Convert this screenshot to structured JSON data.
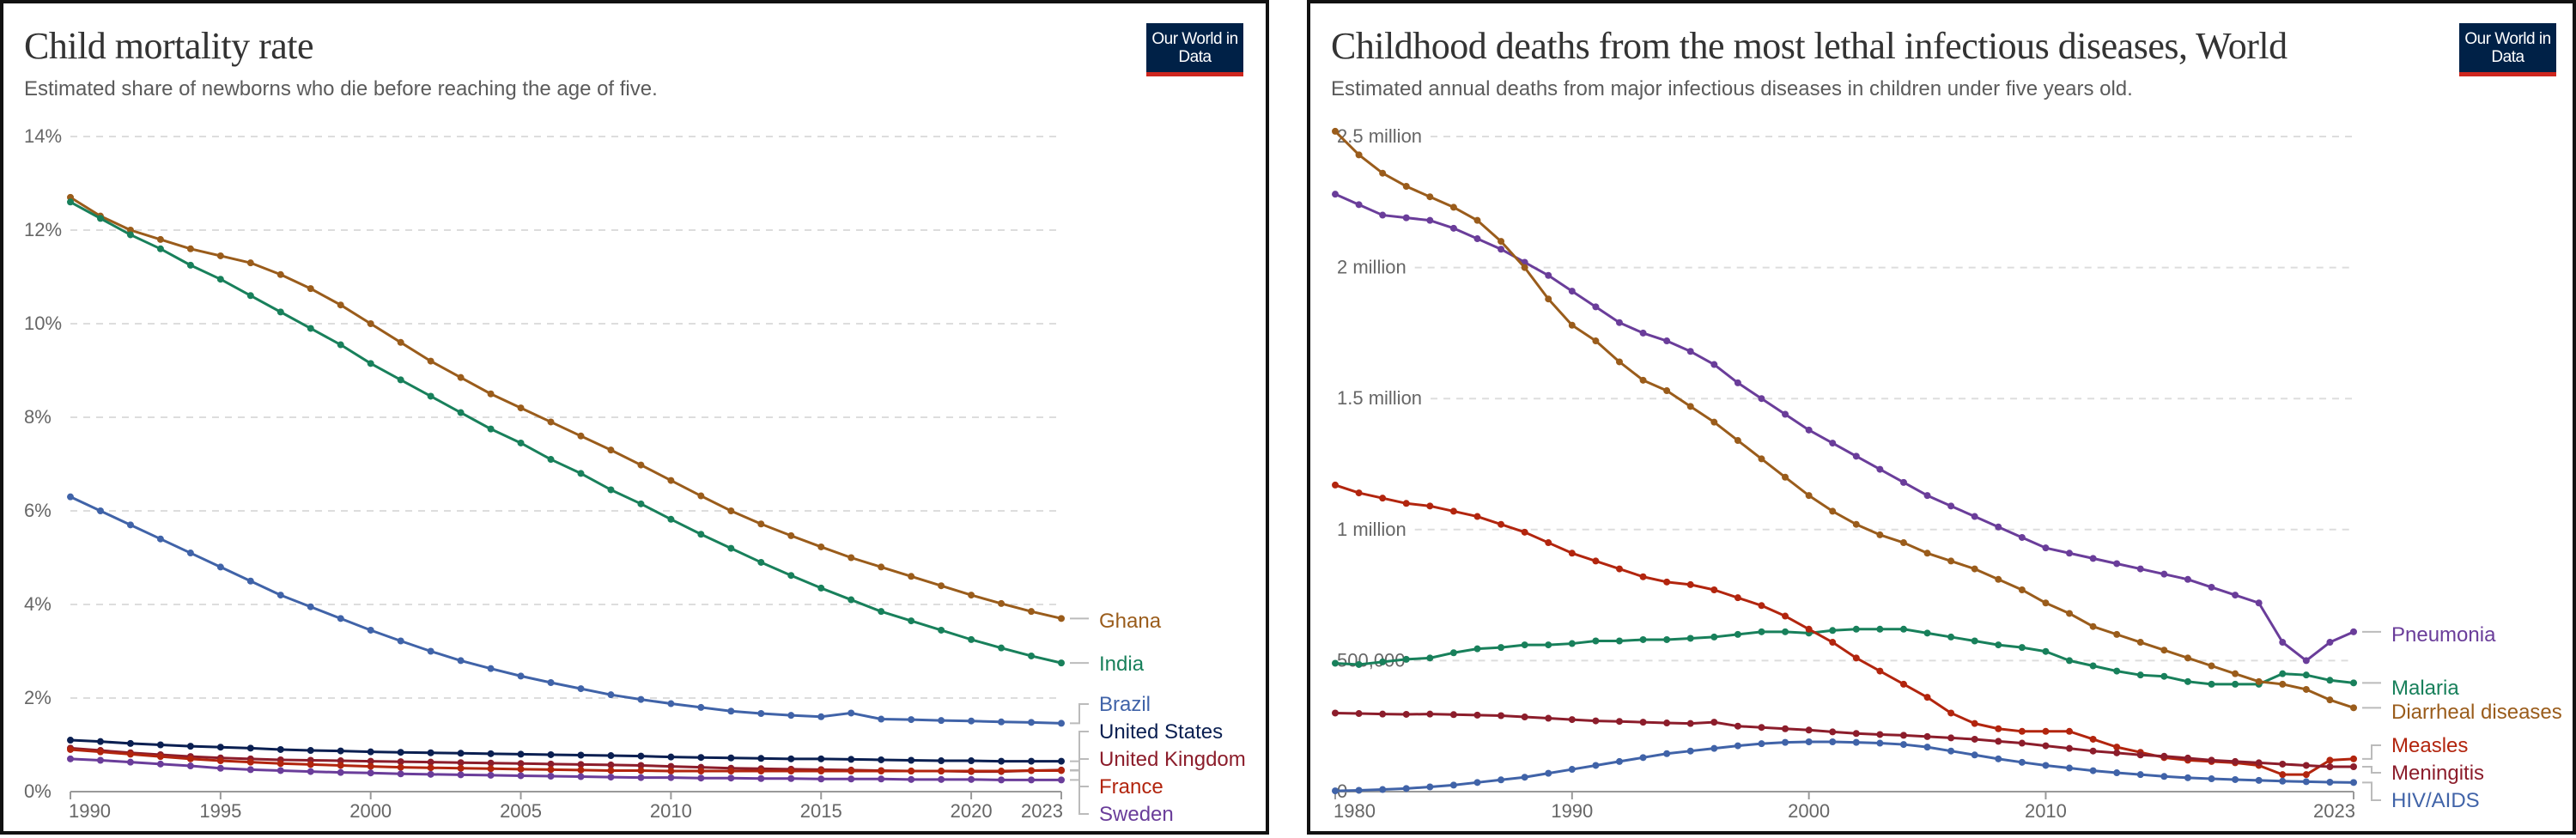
{
  "chart_data": [
    {
      "type": "line",
      "title": "Child mortality rate",
      "subtitle": "Estimated share of newborns who die before reaching the age of five.",
      "logo": "Our World in Data",
      "x_start": 1990,
      "xlim": [
        1990,
        2023
      ],
      "ylim": [
        0,
        14
      ],
      "y_ticks": [
        0,
        2,
        4,
        6,
        8,
        10,
        12,
        14
      ],
      "y_tick_labels": [
        "0%",
        "2%",
        "4%",
        "6%",
        "8%",
        "10%",
        "12%",
        "14%"
      ],
      "x_ticks": [
        1990,
        1995,
        2000,
        2005,
        2010,
        2015,
        2020,
        2023
      ],
      "x_tick_labels": [
        "1990",
        "1995",
        "2000",
        "2005",
        "2010",
        "2015",
        "2020",
        "2023"
      ],
      "grid": "horizontal dashed",
      "legend": "right, inline labels",
      "series": [
        {
          "name": "Ghana",
          "color": "#9a5c1b",
          "values": [
            12.7,
            12.3,
            12.0,
            11.8,
            11.6,
            11.45,
            11.3,
            11.05,
            10.75,
            10.4,
            10.0,
            9.6,
            9.2,
            8.85,
            8.5,
            8.2,
            7.9,
            7.6,
            7.3,
            6.98,
            6.65,
            6.32,
            6.0,
            5.72,
            5.47,
            5.23,
            5.0,
            4.8,
            4.6,
            4.4,
            4.2,
            4.02,
            3.85,
            3.7
          ]
        },
        {
          "name": "India",
          "color": "#18805b",
          "values": [
            12.6,
            12.25,
            11.9,
            11.6,
            11.25,
            10.95,
            10.6,
            10.25,
            9.9,
            9.55,
            9.15,
            8.8,
            8.45,
            8.1,
            7.75,
            7.45,
            7.1,
            6.8,
            6.45,
            6.15,
            5.82,
            5.5,
            5.2,
            4.9,
            4.62,
            4.35,
            4.1,
            3.85,
            3.65,
            3.45,
            3.25,
            3.07,
            2.9,
            2.75
          ]
        },
        {
          "name": "Brazil",
          "color": "#4063a8",
          "values": [
            6.3,
            6.0,
            5.7,
            5.4,
            5.1,
            4.8,
            4.5,
            4.2,
            3.95,
            3.7,
            3.45,
            3.22,
            3.0,
            2.8,
            2.63,
            2.47,
            2.33,
            2.2,
            2.07,
            1.97,
            1.88,
            1.8,
            1.72,
            1.67,
            1.63,
            1.6,
            1.68,
            1.55,
            1.54,
            1.52,
            1.51,
            1.49,
            1.48,
            1.46
          ]
        },
        {
          "name": "United States",
          "color": "#0a1f51",
          "values": [
            1.1,
            1.07,
            1.03,
            1.0,
            0.97,
            0.95,
            0.93,
            0.9,
            0.88,
            0.87,
            0.85,
            0.84,
            0.83,
            0.82,
            0.81,
            0.8,
            0.79,
            0.78,
            0.77,
            0.76,
            0.74,
            0.73,
            0.72,
            0.71,
            0.7,
            0.7,
            0.69,
            0.68,
            0.67,
            0.66,
            0.66,
            0.65,
            0.65,
            0.65
          ]
        },
        {
          "name": "United Kingdom",
          "color": "#8c1d2b",
          "values": [
            0.93,
            0.88,
            0.83,
            0.79,
            0.75,
            0.72,
            0.7,
            0.68,
            0.67,
            0.66,
            0.65,
            0.64,
            0.63,
            0.62,
            0.61,
            0.6,
            0.59,
            0.58,
            0.57,
            0.56,
            0.54,
            0.52,
            0.5,
            0.49,
            0.48,
            0.47,
            0.46,
            0.45,
            0.44,
            0.44,
            0.43,
            0.43,
            0.45,
            0.46
          ]
        },
        {
          "name": "France",
          "color": "#b2250e",
          "values": [
            0.9,
            0.85,
            0.8,
            0.75,
            0.7,
            0.66,
            0.63,
            0.6,
            0.58,
            0.56,
            0.54,
            0.52,
            0.51,
            0.5,
            0.49,
            0.48,
            0.47,
            0.46,
            0.45,
            0.45,
            0.44,
            0.44,
            0.44,
            0.44,
            0.44,
            0.44,
            0.44,
            0.44,
            0.44,
            0.44,
            0.44,
            0.44,
            0.45,
            0.45
          ]
        },
        {
          "name": "Sweden",
          "color": "#6a3d9a",
          "values": [
            0.7,
            0.67,
            0.63,
            0.59,
            0.55,
            0.5,
            0.47,
            0.45,
            0.43,
            0.41,
            0.4,
            0.38,
            0.37,
            0.36,
            0.35,
            0.34,
            0.33,
            0.32,
            0.31,
            0.3,
            0.3,
            0.29,
            0.29,
            0.28,
            0.28,
            0.27,
            0.27,
            0.27,
            0.26,
            0.26,
            0.26,
            0.25,
            0.25,
            0.25
          ]
        }
      ]
    },
    {
      "type": "line",
      "title": "Childhood deaths from the most lethal infectious diseases, World",
      "subtitle": "Estimated annual deaths from major infectious diseases in children under five years old.",
      "logo": "Our World in Data",
      "x_start": 1980,
      "xlim": [
        1980,
        2023
      ],
      "ylim": [
        0,
        2500000
      ],
      "y_ticks": [
        0,
        500000,
        1000000,
        1500000,
        2000000,
        2500000
      ],
      "y_tick_labels": [
        "0",
        "500,000",
        "1 million",
        "1.5 million",
        "2 million",
        "2.5 million"
      ],
      "x_ticks": [
        1980,
        1990,
        2000,
        2010,
        2023
      ],
      "x_tick_labels": [
        "1980",
        "1990",
        "2000",
        "2010",
        "2023"
      ],
      "grid": "horizontal dashed",
      "legend": "right, inline labels",
      "series": [
        {
          "name": "Pneumonia",
          "color": "#6a3d9a",
          "values": [
            2280000,
            2240000,
            2200000,
            2190000,
            2180000,
            2150000,
            2110000,
            2070000,
            2020000,
            1970000,
            1910000,
            1850000,
            1790000,
            1750000,
            1720000,
            1680000,
            1630000,
            1560000,
            1500000,
            1440000,
            1380000,
            1330000,
            1280000,
            1230000,
            1180000,
            1130000,
            1090000,
            1050000,
            1010000,
            970000,
            930000,
            910000,
            890000,
            870000,
            850000,
            830000,
            810000,
            780000,
            750000,
            720000,
            570000,
            500000,
            570000,
            610000
          ]
        },
        {
          "name": "Malaria",
          "color": "#18805b",
          "values": [
            490000,
            485000,
            495000,
            505000,
            510000,
            530000,
            545000,
            550000,
            560000,
            560000,
            565000,
            575000,
            575000,
            580000,
            580000,
            585000,
            590000,
            600000,
            610000,
            610000,
            605000,
            615000,
            620000,
            620000,
            620000,
            605000,
            590000,
            575000,
            560000,
            550000,
            535000,
            500000,
            480000,
            460000,
            445000,
            440000,
            420000,
            410000,
            410000,
            410000,
            450000,
            445000,
            425000,
            415000
          ]
        },
        {
          "name": "Diarrheal diseases",
          "color": "#9a5c1b",
          "values": [
            2520000,
            2430000,
            2360000,
            2310000,
            2270000,
            2230000,
            2180000,
            2100000,
            2000000,
            1880000,
            1780000,
            1720000,
            1640000,
            1570000,
            1530000,
            1470000,
            1410000,
            1340000,
            1270000,
            1200000,
            1130000,
            1070000,
            1020000,
            980000,
            950000,
            910000,
            880000,
            850000,
            810000,
            770000,
            720000,
            680000,
            630000,
            600000,
            570000,
            540000,
            510000,
            480000,
            450000,
            420000,
            410000,
            390000,
            350000,
            320000
          ]
        },
        {
          "name": "Measles",
          "color": "#b2250e",
          "values": [
            1170000,
            1140000,
            1120000,
            1100000,
            1090000,
            1070000,
            1050000,
            1020000,
            990000,
            950000,
            910000,
            880000,
            850000,
            820000,
            800000,
            790000,
            770000,
            740000,
            710000,
            670000,
            620000,
            570000,
            510000,
            460000,
            410000,
            360000,
            300000,
            260000,
            240000,
            230000,
            230000,
            230000,
            200000,
            170000,
            150000,
            130000,
            120000,
            115000,
            110000,
            100000,
            65000,
            65000,
            120000,
            125000
          ]
        },
        {
          "name": "Meningitis",
          "color": "#8c1d2b",
          "values": [
            300000,
            298000,
            296000,
            295000,
            296000,
            294000,
            292000,
            290000,
            285000,
            280000,
            275000,
            270000,
            268000,
            265000,
            262000,
            260000,
            265000,
            250000,
            245000,
            240000,
            235000,
            228000,
            222000,
            218000,
            215000,
            210000,
            205000,
            200000,
            192000,
            185000,
            175000,
            165000,
            155000,
            148000,
            140000,
            135000,
            128000,
            120000,
            115000,
            110000,
            105000,
            100000,
            95000,
            95000
          ]
        },
        {
          "name": "HIV/AIDS",
          "color": "#4063a8",
          "values": [
            3000,
            5000,
            8000,
            12000,
            18000,
            25000,
            35000,
            45000,
            55000,
            70000,
            85000,
            100000,
            115000,
            130000,
            145000,
            155000,
            165000,
            175000,
            183000,
            188000,
            190000,
            190000,
            188000,
            185000,
            180000,
            170000,
            155000,
            140000,
            125000,
            112000,
            100000,
            90000,
            80000,
            72000,
            65000,
            58000,
            53000,
            49000,
            46000,
            43000,
            40000,
            38000,
            36000,
            35000
          ]
        }
      ]
    }
  ]
}
